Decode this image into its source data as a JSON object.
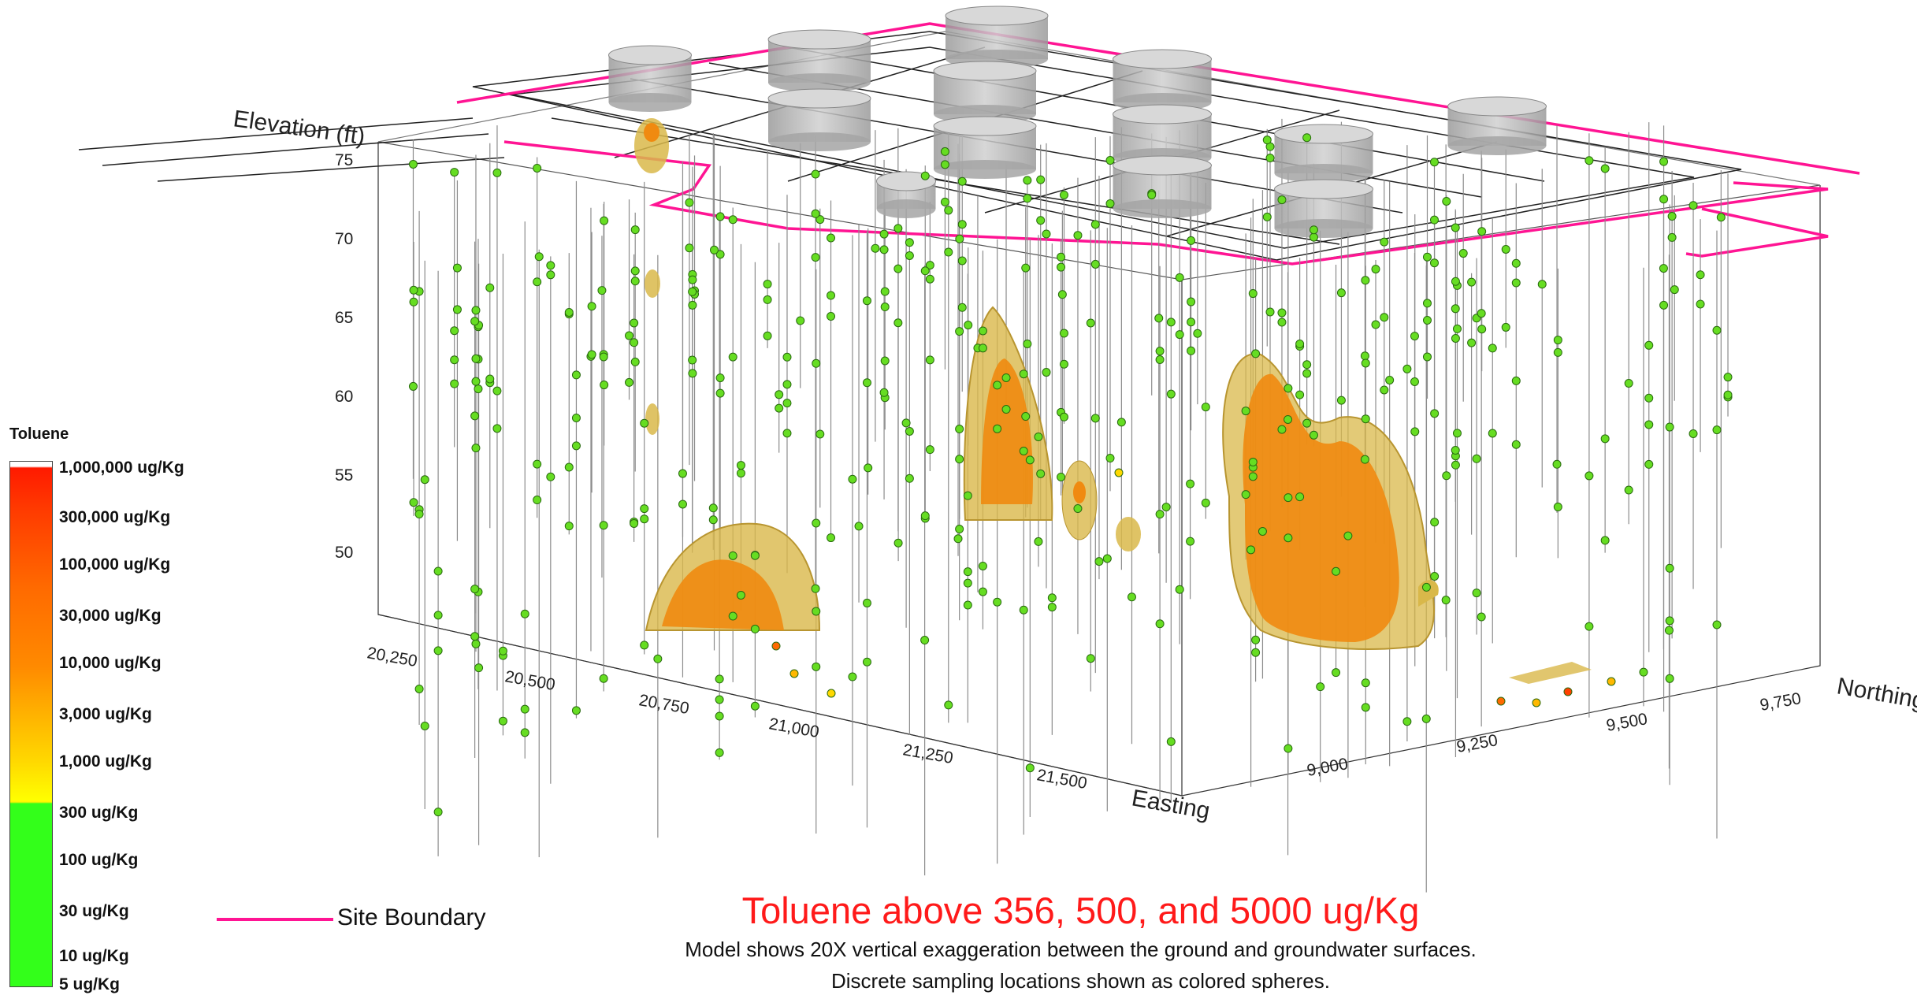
{
  "legend": {
    "title": "Toluene",
    "labels": [
      "1,000,000 ug/Kg",
      "300,000 ug/Kg",
      "100,000 ug/Kg",
      "30,000 ug/Kg",
      "10,000 ug/Kg",
      "3,000 ug/Kg",
      "1,000 ug/Kg",
      "300 ug/Kg",
      "100 ug/Kg",
      "30 ug/Kg",
      "10 ug/Kg",
      "5 ug/Kg"
    ]
  },
  "site_boundary": {
    "label": "Site Boundary",
    "color": "#ff1493"
  },
  "axes": {
    "elevation": {
      "title": "Elevation (ft)",
      "ticks": [
        "75",
        "70",
        "65",
        "60",
        "55",
        "50"
      ]
    },
    "easting": {
      "title": "Easting",
      "ticks": [
        "20,250",
        "20,500",
        "20,750",
        "21,000",
        "21,250",
        "21,500"
      ]
    },
    "northing": {
      "title": "Northing",
      "ticks": [
        "9,000",
        "9,250",
        "9,500",
        "9,750"
      ]
    }
  },
  "caption": {
    "title": "Toluene above 356, 500, and 5000 ug/Kg",
    "line1": "Model shows 20X vertical exaggeration between the ground and groundwater surfaces.",
    "line2": "Discrete sampling locations shown as colored spheres."
  },
  "colors": {
    "sample_low": "#66dd22",
    "plume_outer": "#d9b84a",
    "plume_inner": "#f08a10",
    "tank": "#b8b8b8"
  }
}
